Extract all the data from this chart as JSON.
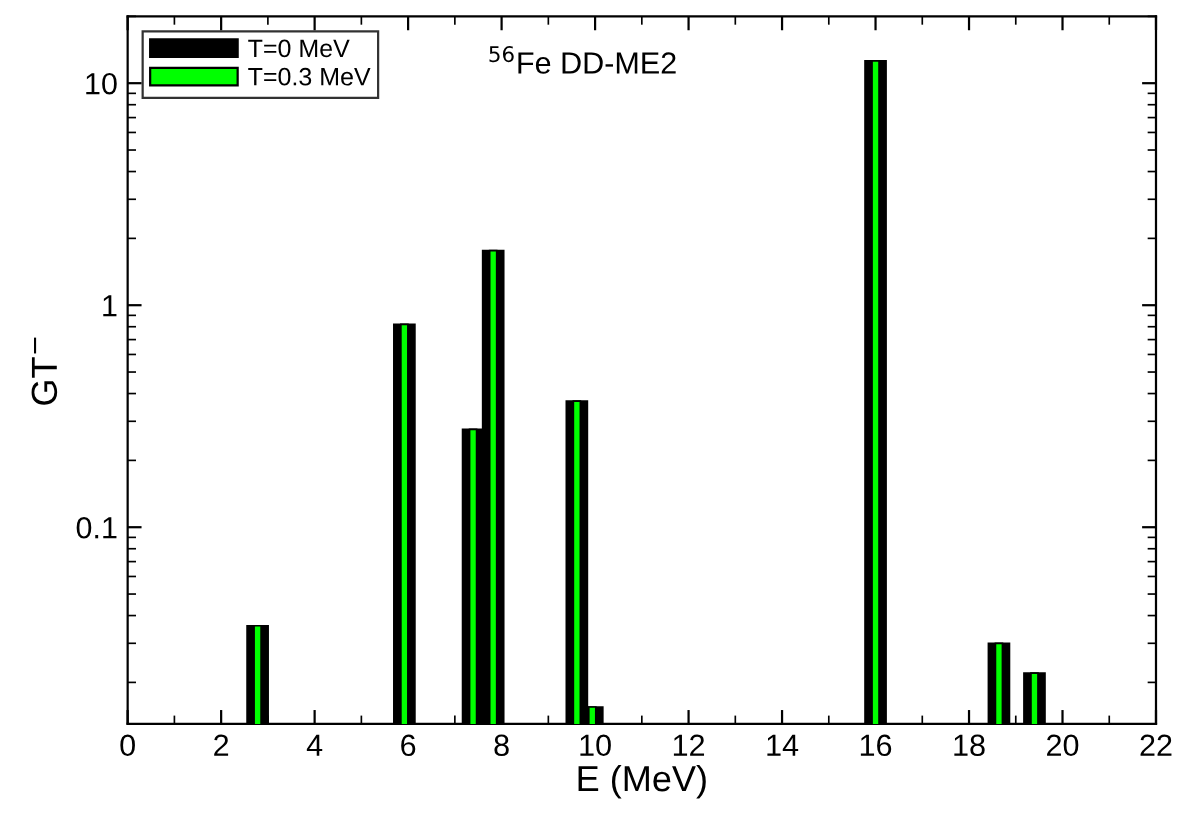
{
  "chart_data": {
    "type": "bar",
    "xlabel": "E (MeV)",
    "ylabel": "GT$^{−}$",
    "annotations": [
      "$^{56}$Fe DD-ME2"
    ],
    "x": [
      2.78,
      5.92,
      7.39,
      7.82,
      9.61,
      9.94,
      16.0,
      18.64,
      19.4
    ],
    "series": [
      {
        "name": "T=0 MeV",
        "color": "#000000",
        "values": [
          0.036,
          0.82,
          0.276,
          1.76,
          0.37,
          0.0155,
          12.6,
          0.03,
          0.022
        ]
      },
      {
        "name": "T=0.3 MeV",
        "color": "#00ff00",
        "values": [
          0.036,
          0.82,
          0.276,
          1.76,
          0.37,
          0.0155,
          12.6,
          0.03,
          0.022
        ]
      }
    ],
    "log": "y",
    "xlim": [
      0,
      22
    ],
    "xticks": [
      0,
      2,
      4,
      6,
      8,
      10,
      12,
      14,
      16,
      18,
      20,
      22
    ],
    "ylim": [
      0.013,
      20
    ],
    "yticks": [
      0.1,
      1,
      10
    ],
    "grid": false,
    "legend": "top left"
  }
}
